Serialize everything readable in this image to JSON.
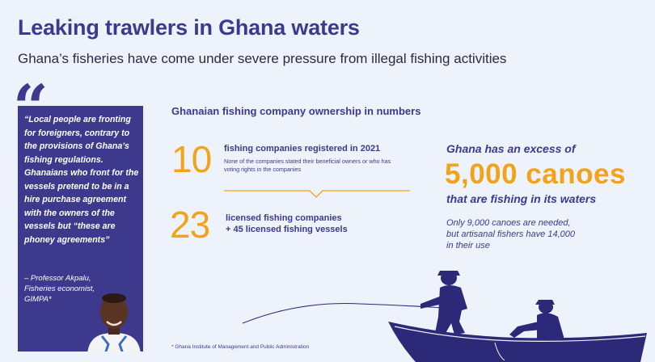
{
  "header": {
    "title": "Leaking trawlers in Ghana waters",
    "subtitle": "Ghana’s fisheries have come under severe pressure from illegal fishing activities"
  },
  "quote": {
    "text": "“Local people are fronting for foreigners, contrary to the provisions of Ghana’s fishing regulations. Ghanaians who front for the vessels pretend to be in a hire purchase agreement with the owners of the vessels but “these are phoney agreements”",
    "author_lines": [
      "– Professor Akpalu,",
      "Fisheries economist,",
      "GIMPA*"
    ]
  },
  "ownership": {
    "heading": "Ghanaian fishing company ownership in numbers",
    "stat1": {
      "number": "10",
      "title": "fishing companies registered in 2021",
      "note": "None of the companies stated their beneficial owners or who has voting rights in the companies"
    },
    "stat2": {
      "number": "23",
      "title_line1": "licensed fishing companies",
      "title_line2": "+ 45 licensed fishing vessels"
    }
  },
  "canoes": {
    "lead": "Ghana has an excess of",
    "big": "5,000 canoes",
    "tail": "that are fishing in its waters",
    "note_lines": [
      "Only 9,000 canoes are needed,",
      "but artisanal fishers have 14,000",
      "in their use"
    ]
  },
  "footnote": "* Ghana Institute of Management and Public Administration",
  "colors": {
    "navy": "#3b3a8f",
    "orange": "#f1a31c",
    "background": "#eef2fa"
  }
}
